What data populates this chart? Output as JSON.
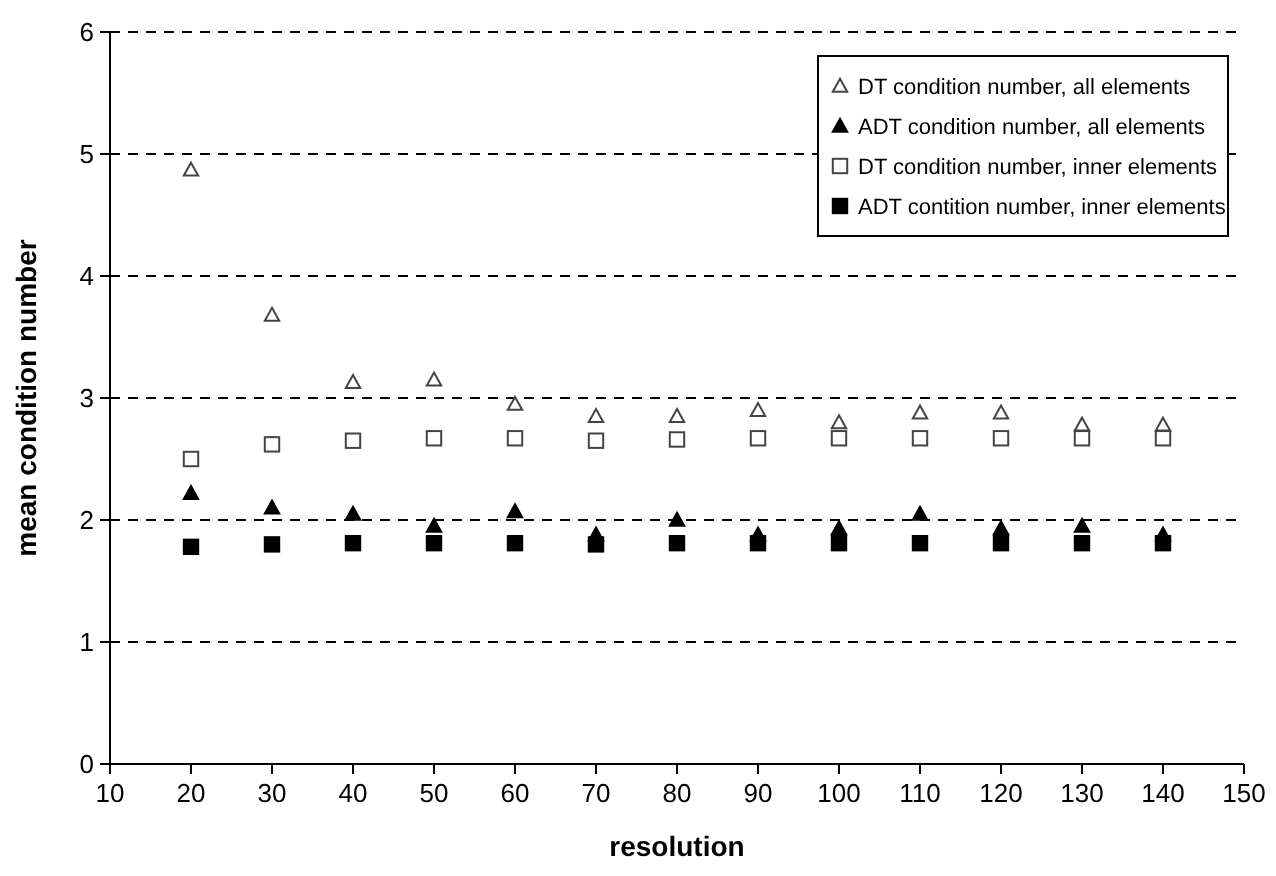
{
  "chart_data": {
    "type": "scatter",
    "xlabel": "resolution",
    "ylabel": "mean condition number",
    "x": [
      20,
      30,
      40,
      50,
      60,
      70,
      80,
      90,
      100,
      110,
      120,
      130,
      140
    ],
    "xlim": [
      10,
      150
    ],
    "xticks": [
      10,
      20,
      30,
      40,
      50,
      60,
      70,
      80,
      90,
      100,
      110,
      120,
      130,
      140,
      150
    ],
    "ylim": [
      0,
      6
    ],
    "yticks": [
      0,
      1,
      2,
      3,
      4,
      5,
      6
    ],
    "grid": "y",
    "legend": "top right",
    "series": [
      {
        "name": "DT condition number, all elements",
        "color": "#ffffff",
        "marker": "triangle",
        "values": [
          4.87,
          3.68,
          3.13,
          3.15,
          2.95,
          2.85,
          2.85,
          2.9,
          2.8,
          2.88,
          2.88,
          2.78,
          2.78
        ]
      },
      {
        "name": "ADT condition number, all elements",
        "color": "#000000",
        "marker": "triangle",
        "values": [
          2.22,
          2.1,
          2.05,
          1.95,
          2.07,
          1.88,
          2.0,
          1.88,
          1.93,
          2.05,
          1.93,
          1.95,
          1.88
        ]
      },
      {
        "name": "DT condition number, inner elements",
        "color": "#ffffff",
        "marker": "square",
        "values": [
          2.5,
          2.62,
          2.65,
          2.67,
          2.67,
          2.65,
          2.66,
          2.67,
          2.67,
          2.67,
          2.67,
          2.67,
          2.67
        ]
      },
      {
        "name": "ADT contition number, inner elements",
        "color": "#000000",
        "marker": "square",
        "values": [
          1.78,
          1.8,
          1.81,
          1.81,
          1.81,
          1.8,
          1.81,
          1.81,
          1.81,
          1.81,
          1.81,
          1.81,
          1.81
        ]
      }
    ]
  }
}
